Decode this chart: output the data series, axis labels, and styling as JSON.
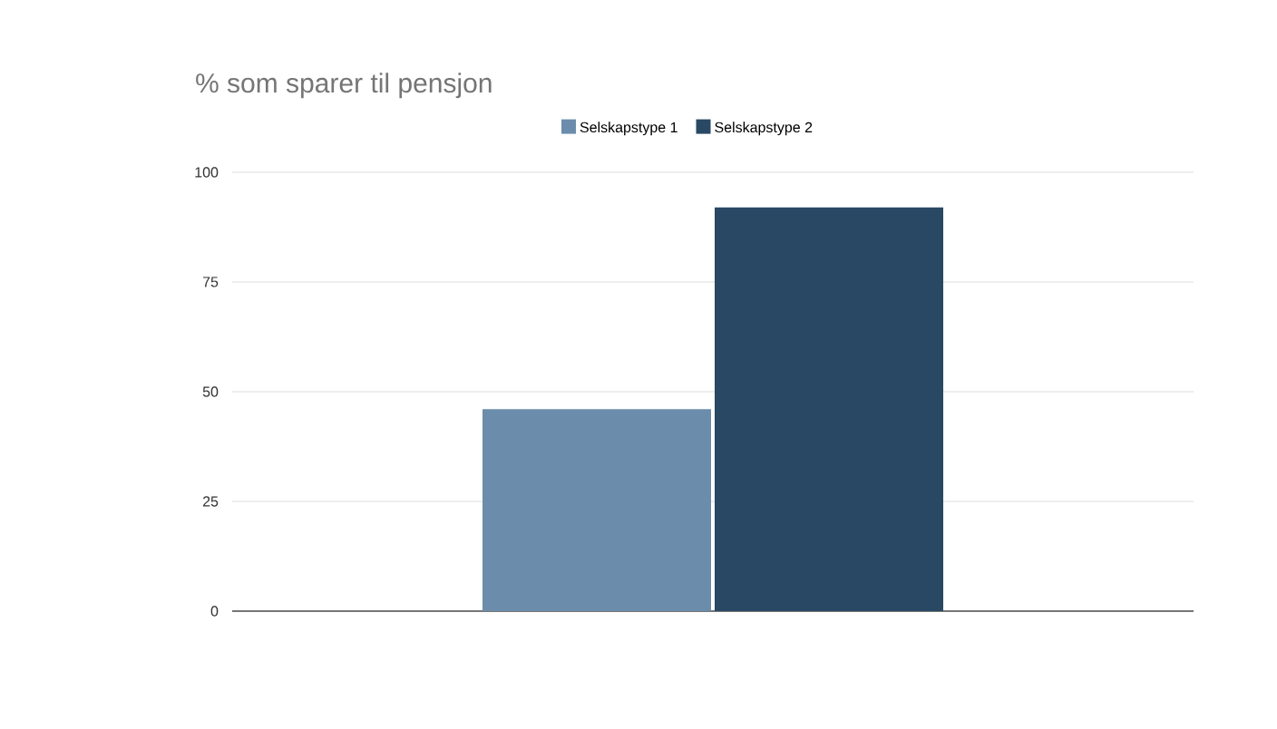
{
  "chart_data": {
    "type": "bar",
    "title": "% som sparer til pensjon",
    "categories": [
      null
    ],
    "series": [
      {
        "name": "Selskapstype 1",
        "color": "#6b8dab",
        "values": [
          46
        ]
      },
      {
        "name": "Selskapstype 2",
        "color": "#294863",
        "values": [
          92
        ]
      }
    ],
    "ylim": [
      0,
      100
    ],
    "yticks": [
      0,
      25,
      50,
      75,
      100
    ],
    "grid": "y",
    "legend": "top"
  }
}
